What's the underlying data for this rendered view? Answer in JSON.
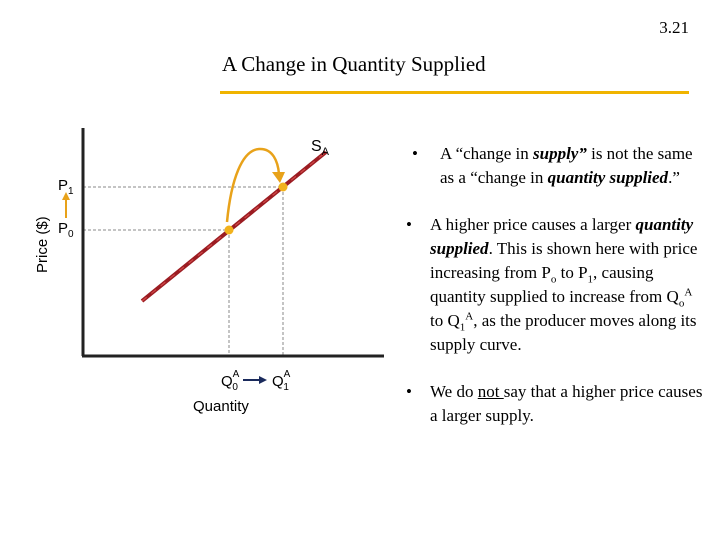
{
  "slide": {
    "number": "3.21",
    "title": "A Change in Quantity Supplied"
  },
  "diagram": {
    "y_axis_label": "Price ($)",
    "x_axis_label": "Quantity",
    "curve_label": "S",
    "curve_label_sub": "A",
    "p1": "P",
    "p1_sub": "1",
    "p0": "P",
    "p0_sub": "0",
    "q0": "Q",
    "q0_sub": "0",
    "q0_sup": "A",
    "q1": "Q",
    "q1_sub": "1",
    "q1_sup": "A",
    "colors": {
      "curve": "#9b1c22",
      "point": "#f2b21c",
      "arrow": "#e8a21a",
      "axis": "#222222"
    }
  },
  "bullets": [
    {
      "t1": "A “change in ",
      "t2": "supply”",
      "t3": " is not the same as a “change in ",
      "t4": "quantity supplied",
      "t5": ".”"
    },
    {
      "t1": "A higher price causes a larger ",
      "t2": "quantity supplied",
      "t3": ". This is shown here with price increasing from P",
      "s1": "o",
      "t4": " to P",
      "s2": "1",
      "t5": ", causing quantity supplied to increase from Q",
      "s3": "o",
      "p1": "A",
      "t6": " to Q",
      "s4": "1",
      "p2": "A",
      "t7": ", as the producer moves along its supply curve."
    },
    {
      "t1": "We do ",
      "t2": "not ",
      "t3": "say that a higher price causes a larger supply."
    }
  ]
}
